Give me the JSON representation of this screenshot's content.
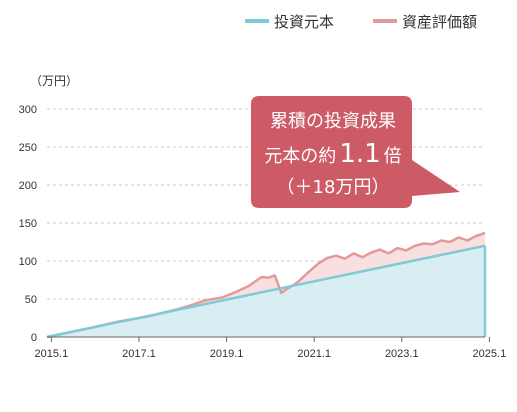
{
  "chart_data": {
    "type": "area",
    "unit_label": "（万円）",
    "x_ticks": [
      "2015.1",
      "2017.1",
      "2019.1",
      "2021.1",
      "2023.1",
      "2025.1"
    ],
    "x_range": [
      2015.0,
      2025.0
    ],
    "ylim": [
      0,
      300
    ],
    "y_ticks": [
      0,
      50,
      100,
      150,
      200,
      250,
      300
    ],
    "grid": "horizontal dashed",
    "legend_position": "top-right",
    "series": [
      {
        "name": "投資元本",
        "color": "#7ecad6",
        "fill": "#d9eef3",
        "points": [
          [
            2015.0,
            0
          ],
          [
            2025.0,
            120
          ]
        ]
      },
      {
        "name": "資産評価額",
        "color": "#e49a9a",
        "fill": "#f8dfe0",
        "points": [
          [
            2015.0,
            0
          ],
          [
            2015.5,
            6
          ],
          [
            2016.0,
            12
          ],
          [
            2016.3,
            16
          ],
          [
            2016.6,
            20
          ],
          [
            2017.0,
            24
          ],
          [
            2017.3,
            27
          ],
          [
            2017.6,
            31
          ],
          [
            2018.0,
            37
          ],
          [
            2018.3,
            42
          ],
          [
            2018.6,
            48
          ],
          [
            2018.9,
            51
          ],
          [
            2019.0,
            52
          ],
          [
            2019.3,
            59
          ],
          [
            2019.6,
            67
          ],
          [
            2019.9,
            79
          ],
          [
            2020.05,
            78
          ],
          [
            2020.2,
            81
          ],
          [
            2020.35,
            58
          ],
          [
            2020.5,
            64
          ],
          [
            2020.7,
            71
          ],
          [
            2021.0,
            87
          ],
          [
            2021.2,
            97
          ],
          [
            2021.4,
            104
          ],
          [
            2021.6,
            107
          ],
          [
            2021.8,
            103
          ],
          [
            2022.0,
            110
          ],
          [
            2022.2,
            105
          ],
          [
            2022.4,
            111
          ],
          [
            2022.6,
            115
          ],
          [
            2022.8,
            110
          ],
          [
            2023.0,
            117
          ],
          [
            2023.2,
            114
          ],
          [
            2023.4,
            120
          ],
          [
            2023.6,
            123
          ],
          [
            2023.8,
            122
          ],
          [
            2024.0,
            127
          ],
          [
            2024.2,
            125
          ],
          [
            2024.4,
            131
          ],
          [
            2024.6,
            127
          ],
          [
            2024.8,
            133
          ],
          [
            2025.0,
            137
          ]
        ]
      }
    ],
    "callout": {
      "line1": "累積の投資成果",
      "line2_prefix": "元本の約",
      "line2_value": "1.1",
      "line2_suffix": "倍",
      "line3": "（＋18万円）",
      "color": "#cd5b65"
    }
  }
}
